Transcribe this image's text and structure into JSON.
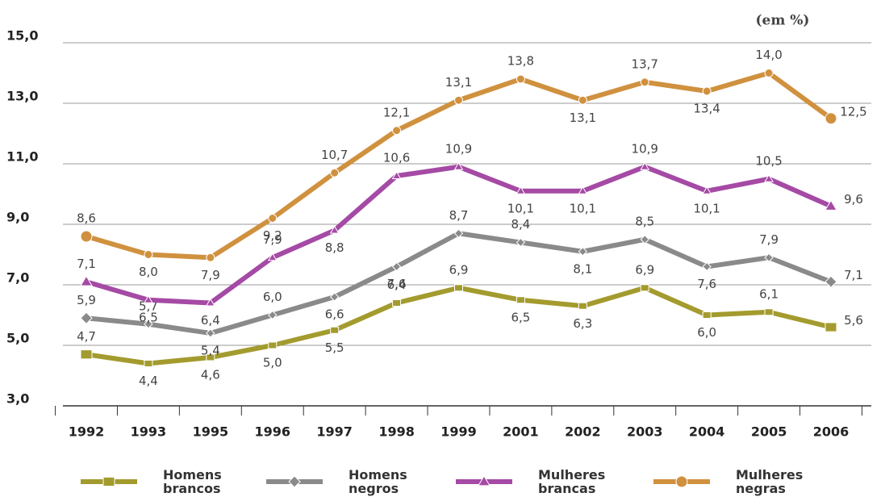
{
  "chart_data": {
    "type": "line",
    "annotation": "(em %)",
    "categories": [
      "1992",
      "1993",
      "1995",
      "1996",
      "1997",
      "1998",
      "1999",
      "2001",
      "2002",
      "2003",
      "2004",
      "2005",
      "2006"
    ],
    "ylim": [
      3,
      15
    ],
    "yticks": [
      {
        "value": 3,
        "label": "3,0"
      },
      {
        "value": 5,
        "label": "5,0"
      },
      {
        "value": 7,
        "label": "7,0"
      },
      {
        "value": 9,
        "label": "9,0"
      },
      {
        "value": 11,
        "label": "11,0"
      },
      {
        "value": 13,
        "label": "13,0"
      },
      {
        "value": 15,
        "label": "15,0"
      }
    ],
    "grid": true,
    "legend": "bottom",
    "series": [
      {
        "name": "Homens brancos",
        "color": "#a39b2e",
        "marker": "square",
        "values": [
          4.7,
          4.4,
          4.6,
          5.0,
          5.5,
          6.4,
          6.9,
          6.5,
          6.3,
          6.9,
          6.0,
          6.1,
          5.6
        ],
        "value_labels": [
          "4,7",
          "4,4",
          "4,6",
          "5,0",
          "5,5",
          "6,4",
          "6,9",
          "6,5",
          "6,3",
          "6,9",
          "6,0",
          "6,1",
          "5,6"
        ]
      },
      {
        "name": "Homens negros",
        "color": "#8a8a8a",
        "marker": "diamond",
        "values": [
          5.9,
          5.7,
          5.4,
          6.0,
          6.6,
          7.6,
          8.7,
          8.4,
          8.1,
          8.5,
          7.6,
          7.9,
          7.1
        ],
        "value_labels": [
          "5,9",
          "5,7",
          "5,4",
          "6,0",
          "6,6",
          "7,6",
          "8,7",
          "8,4",
          "8,1",
          "8,5",
          "7,6",
          "7,9",
          "7,1"
        ]
      },
      {
        "name": "Mulheres brancas",
        "color": "#a54aa5",
        "marker": "triangle",
        "values": [
          7.1,
          6.5,
          6.4,
          7.9,
          8.8,
          10.6,
          10.9,
          10.1,
          10.1,
          10.9,
          10.1,
          10.5,
          9.6
        ],
        "value_labels": [
          "7,1",
          "6,5",
          "6,4",
          "7,9",
          "8,8",
          "10,6",
          "10,9",
          "10,1",
          "10,1",
          "10,9",
          "10,1",
          "10,5",
          "9,6"
        ]
      },
      {
        "name": "Mulheres negras",
        "color": "#d0913f",
        "marker": "circle",
        "values": [
          8.6,
          8.0,
          7.9,
          9.2,
          10.7,
          12.1,
          13.1,
          13.8,
          13.1,
          13.7,
          13.4,
          14.0,
          12.5
        ],
        "value_labels": [
          "8,6",
          "8,0",
          "7,9",
          "9,2",
          "10,7",
          "12,1",
          "13,1",
          "13,8",
          "13,1",
          "13,7",
          "13,4",
          "14,0",
          "12,5"
        ]
      }
    ]
  }
}
